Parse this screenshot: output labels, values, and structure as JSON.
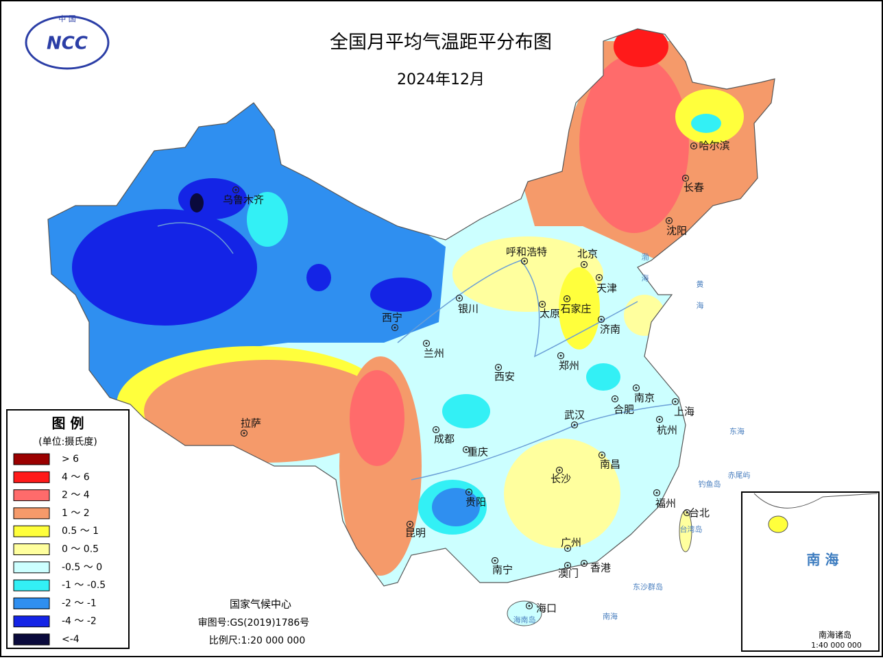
{
  "logo": {
    "top": "中 国",
    "mark": "NCC"
  },
  "header": {
    "title": "全国月平均气温距平分布图",
    "subtitle": "2024年12月"
  },
  "legend": {
    "title": "图 例",
    "unit": "(单位:摄氏度)",
    "items": [
      {
        "label": "> 6",
        "color": "#9b0000"
      },
      {
        "label": "4 ～ 6",
        "color": "#ff1a1a"
      },
      {
        "label": "2 ～ 4",
        "color": "#ff6b6b"
      },
      {
        "label": "1 ～ 2",
        "color": "#f59a6a"
      },
      {
        "label": "0.5 ～ 1",
        "color": "#ffff3c"
      },
      {
        "label": "0 ～ 0.5",
        "color": "#ffff9e"
      },
      {
        "label": "-0.5 ～ 0",
        "color": "#ccffff"
      },
      {
        "label": "-1 ～ -0.5",
        "color": "#33f0f5"
      },
      {
        "label": "-2 ～ -1",
        "color": "#2f8ff0"
      },
      {
        "label": "-4 ～ -2",
        "color": "#1424e6"
      },
      {
        "label": "<-4",
        "color": "#0a0a3c"
      }
    ]
  },
  "cities": [
    "乌鲁木齐",
    "拉萨",
    "西宁",
    "兰州",
    "银川",
    "呼和浩特",
    "北京",
    "天津",
    "石家庄",
    "太原",
    "济南",
    "郑州",
    "西安",
    "成都",
    "重庆",
    "贵阳",
    "昆明",
    "南宁",
    "广州",
    "澳门",
    "香港",
    "海口",
    "长沙",
    "南昌",
    "武汉",
    "合肥",
    "南京",
    "上海",
    "杭州",
    "福州",
    "台北",
    "长春",
    "沈阳",
    "哈尔滨"
  ],
  "places": [
    "渤海",
    "黄海",
    "东海",
    "南海",
    "台湾岛",
    "海南岛",
    "钓鱼岛",
    "赤尾屿",
    "东沙群岛"
  ],
  "footer": {
    "org": "国家气候中心",
    "approval": "审图号:GS(2019)1786号",
    "scale": "比例尺:1:20 000 000"
  },
  "inset": {
    "title": "南 海",
    "islands": "南海诸岛",
    "scale": "1:40 000 000"
  }
}
